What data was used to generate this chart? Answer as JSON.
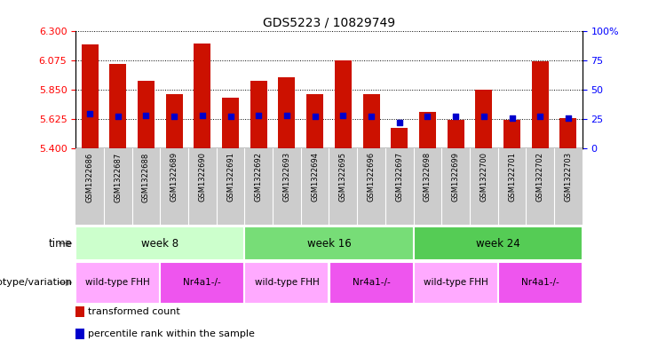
{
  "title": "GDS5223 / 10829749",
  "samples": [
    "GSM1322686",
    "GSM1322687",
    "GSM1322688",
    "GSM1322689",
    "GSM1322690",
    "GSM1322691",
    "GSM1322692",
    "GSM1322693",
    "GSM1322694",
    "GSM1322695",
    "GSM1322696",
    "GSM1322697",
    "GSM1322698",
    "GSM1322699",
    "GSM1322700",
    "GSM1322701",
    "GSM1322702",
    "GSM1322703"
  ],
  "transformed_counts": [
    6.2,
    6.05,
    5.92,
    5.82,
    6.21,
    5.79,
    5.92,
    5.95,
    5.82,
    6.08,
    5.82,
    5.56,
    5.68,
    5.62,
    5.85,
    5.62,
    6.07,
    5.63
  ],
  "percentile_ranks": [
    30,
    27,
    28,
    27,
    28,
    27,
    28,
    28,
    27,
    28,
    27,
    22,
    27,
    27,
    27,
    26,
    27,
    26
  ],
  "ylim_left": [
    5.4,
    6.3
  ],
  "ylim_right": [
    0,
    100
  ],
  "yticks_left": [
    5.4,
    5.625,
    5.85,
    6.075,
    6.3
  ],
  "yticks_right": [
    0,
    25,
    50,
    75,
    100
  ],
  "bar_color": "#cc1100",
  "dot_color": "#0000cc",
  "bar_base": 5.4,
  "xtick_bg_color": "#cccccc",
  "time_groups": [
    {
      "label": "week 8",
      "start": 0,
      "end": 6,
      "color": "#ccffcc"
    },
    {
      "label": "week 16",
      "start": 6,
      "end": 12,
      "color": "#77dd77"
    },
    {
      "label": "week 24",
      "start": 12,
      "end": 18,
      "color": "#55cc55"
    }
  ],
  "genotype_groups": [
    {
      "label": "wild-type FHH",
      "start": 0,
      "end": 3,
      "color": "#ffaaff"
    },
    {
      "label": "Nr4a1-/-",
      "start": 3,
      "end": 6,
      "color": "#ee55ee"
    },
    {
      "label": "wild-type FHH",
      "start": 6,
      "end": 9,
      "color": "#ffaaff"
    },
    {
      "label": "Nr4a1-/-",
      "start": 9,
      "end": 12,
      "color": "#ee55ee"
    },
    {
      "label": "wild-type FHH",
      "start": 12,
      "end": 15,
      "color": "#ffaaff"
    },
    {
      "label": "Nr4a1-/-",
      "start": 15,
      "end": 18,
      "color": "#ee55ee"
    }
  ],
  "legend_items": [
    {
      "label": "transformed count",
      "color": "#cc1100"
    },
    {
      "label": "percentile rank within the sample",
      "color": "#0000cc"
    }
  ],
  "arrow_color": "#999999"
}
